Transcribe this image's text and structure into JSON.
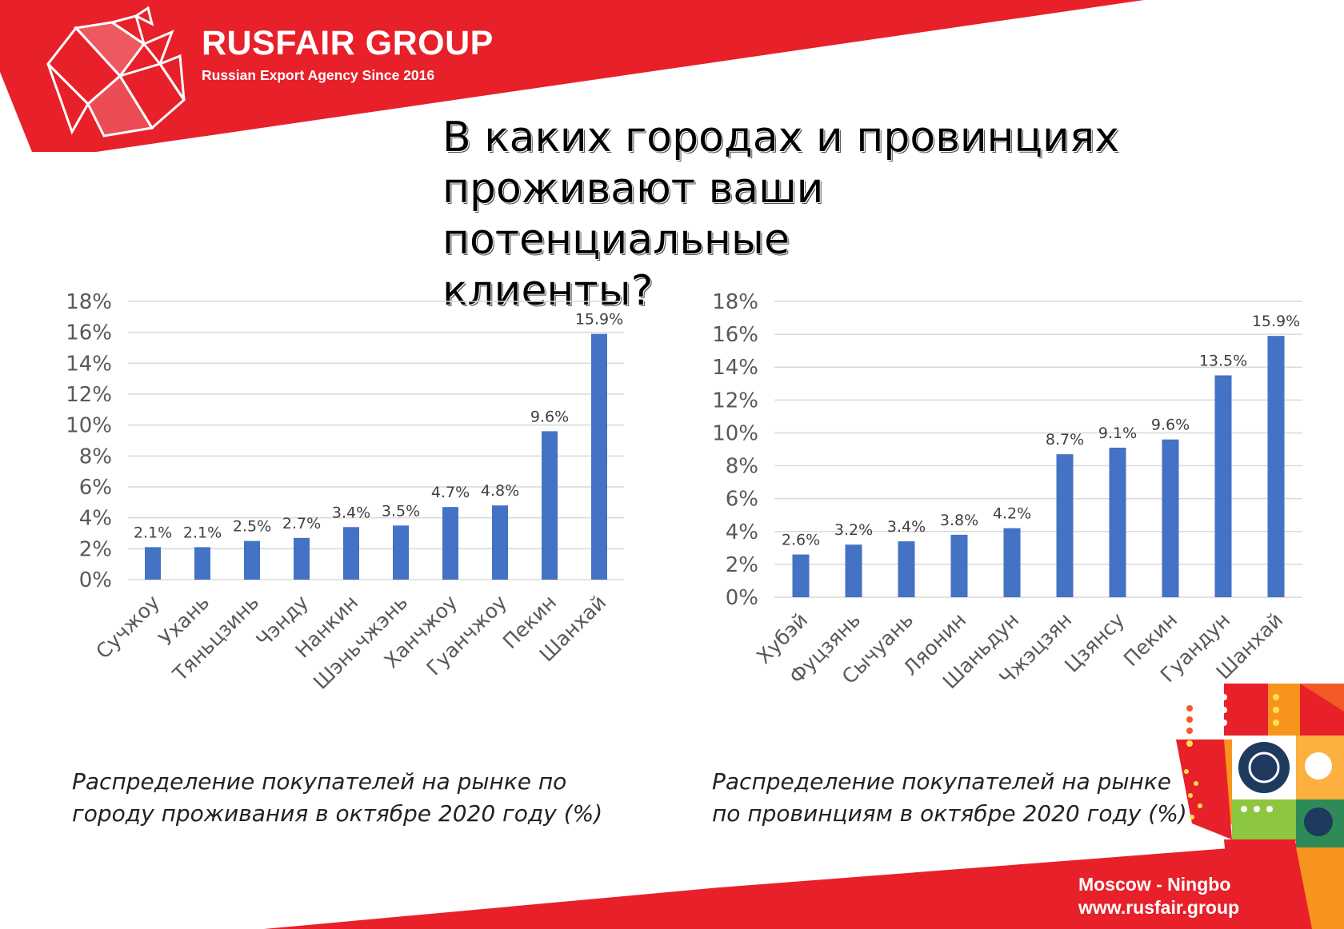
{
  "brand": {
    "name": "RUSFAIR GROUP",
    "tagline": "Russian Export Agency Since 2016",
    "accent": "#e8202a"
  },
  "headline": {
    "line1": "В каких городах и провинциях",
    "line2": "проживают ваши потенциальные",
    "line3": "клиенты?"
  },
  "chart_data": [
    {
      "type": "bar",
      "categories": [
        "Сучжоу",
        "Ухань",
        "Тяньцзинь",
        "Чэнду",
        "Нанкин",
        "Шэньчжэнь",
        "Ханчжоу",
        "Гуанчжоу",
        "Пекин",
        "Шанхай"
      ],
      "values": [
        2.1,
        2.1,
        2.5,
        2.7,
        3.4,
        3.5,
        4.7,
        4.8,
        9.6,
        15.9
      ],
      "value_labels": [
        "2.1%",
        "2.1%",
        "2.5%",
        "2.7%",
        "3.4%",
        "3.5%",
        "4.7%",
        "4.8%",
        "9.6%",
        "15.9%"
      ],
      "ylim": [
        0,
        18
      ],
      "yticks": [
        "0%",
        "2%",
        "4%",
        "6%",
        "8%",
        "10%",
        "12%",
        "14%",
        "16%",
        "18%"
      ],
      "grid": true,
      "bar_color": "#4472c4"
    },
    {
      "type": "bar",
      "categories": [
        "Хубэй",
        "Фуцзянь",
        "Сычуань",
        "Ляонин",
        "Шаньдун",
        "Чжэцзян",
        "Цзянсу",
        "Пекин",
        "Гуандун",
        "Шанхай"
      ],
      "values": [
        2.6,
        3.2,
        3.4,
        3.8,
        4.2,
        8.7,
        9.1,
        9.6,
        13.5,
        15.9
      ],
      "value_labels": [
        "2.6%",
        "3.2%",
        "3.4%",
        "3.8%",
        "4.2%",
        "8.7%",
        "9.1%",
        "9.6%",
        "13.5%",
        "15.9%"
      ],
      "ylim": [
        0,
        18
      ],
      "yticks": [
        "0%",
        "2%",
        "4%",
        "6%",
        "8%",
        "10%",
        "12%",
        "14%",
        "16%",
        "18%"
      ],
      "grid": true,
      "bar_color": "#4472c4"
    }
  ],
  "captions": {
    "left_line1": "Распределение покупателей на рынке по",
    "left_line2": "городу проживания в октябре 2020 году (%)",
    "right_line1": "Распределение покупателей на рынке",
    "right_line2": "по провинциям в октябре 2020 году (%)"
  },
  "footer": {
    "route": "Moscow - Ningbo",
    "website": "www.rusfair.group"
  }
}
